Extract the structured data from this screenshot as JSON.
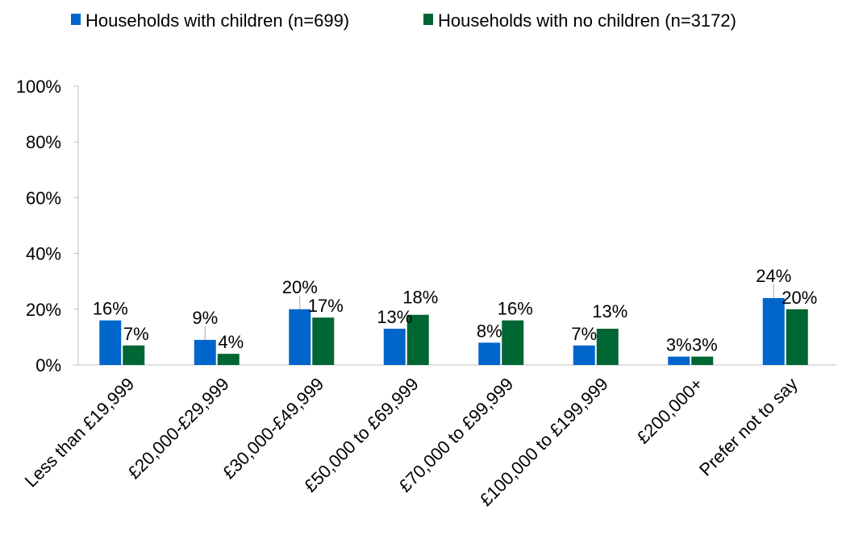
{
  "chart_data": {
    "type": "bar",
    "title": "",
    "xlabel": "",
    "ylabel": "",
    "ylim": [
      0,
      100
    ],
    "yticks": [
      "0%",
      "20%",
      "40%",
      "60%",
      "80%",
      "100%"
    ],
    "legend_position": "top",
    "categories": [
      "Less than £19,999",
      "£20,000-£29,999",
      "£30,000-£49,999",
      "£50,000 to £69,999",
      "£70,000 to £99,999",
      "£100,000 to £199,999",
      "£200,000+",
      "Prefer not to say"
    ],
    "series": [
      {
        "name": "Households with children (n=699)",
        "color": "#0066CC",
        "values": [
          16,
          9,
          20,
          13,
          8,
          7,
          3,
          24
        ],
        "labels": [
          "16%",
          "9%",
          "20%",
          "13%",
          "8%",
          "7%",
          "3%",
          "24%"
        ]
      },
      {
        "name": "Households with no children (n=3172)",
        "color": "#006633",
        "values": [
          7,
          4,
          17,
          18,
          16,
          13,
          3,
          20
        ],
        "labels": [
          "7%",
          "4%",
          "17%",
          "18%",
          "16%",
          "13%",
          "3%",
          "20%"
        ]
      }
    ]
  }
}
